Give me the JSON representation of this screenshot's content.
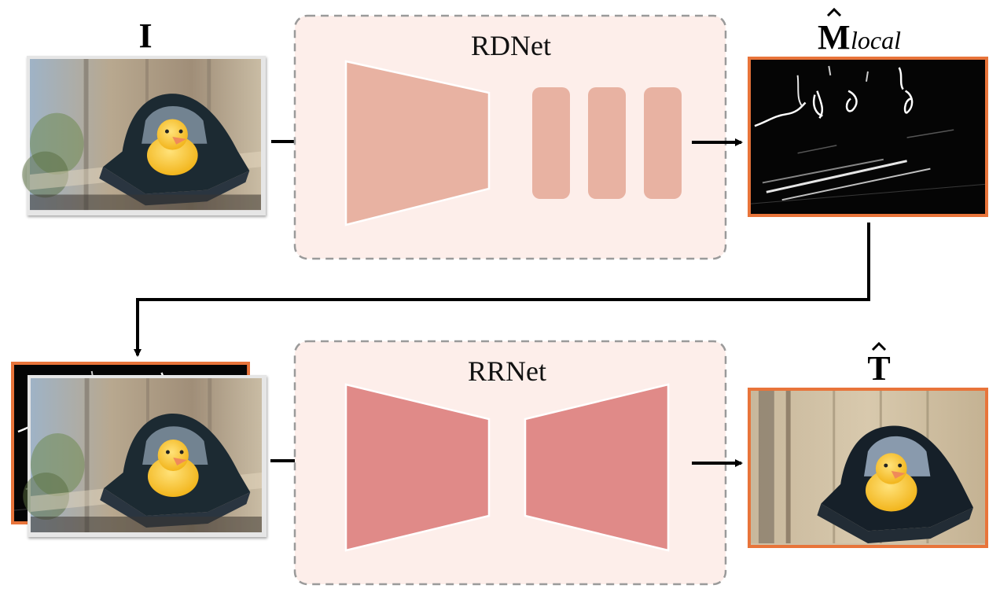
{
  "labels": {
    "input_symbol": "I",
    "mask_symbol_main": "M",
    "mask_symbol_sub": "local",
    "output_symbol": "T",
    "rdnet": "RDNet",
    "rrnet": "RRNet"
  },
  "colors": {
    "module_fill": "#fdeeea",
    "module_border": "#9a9a9a",
    "rdnet_block": "#e8b2a2",
    "rrnet_block": "#e08a88",
    "highlight_border": "#e8743a",
    "arrow": "#000000"
  },
  "images": {
    "input": "photo-duck-with-reflection",
    "mask": "reflection-mask-map",
    "stack_front": "photo-duck-with-reflection",
    "stack_back": "reflection-mask-map",
    "output": "photo-duck-reflection-removed"
  }
}
